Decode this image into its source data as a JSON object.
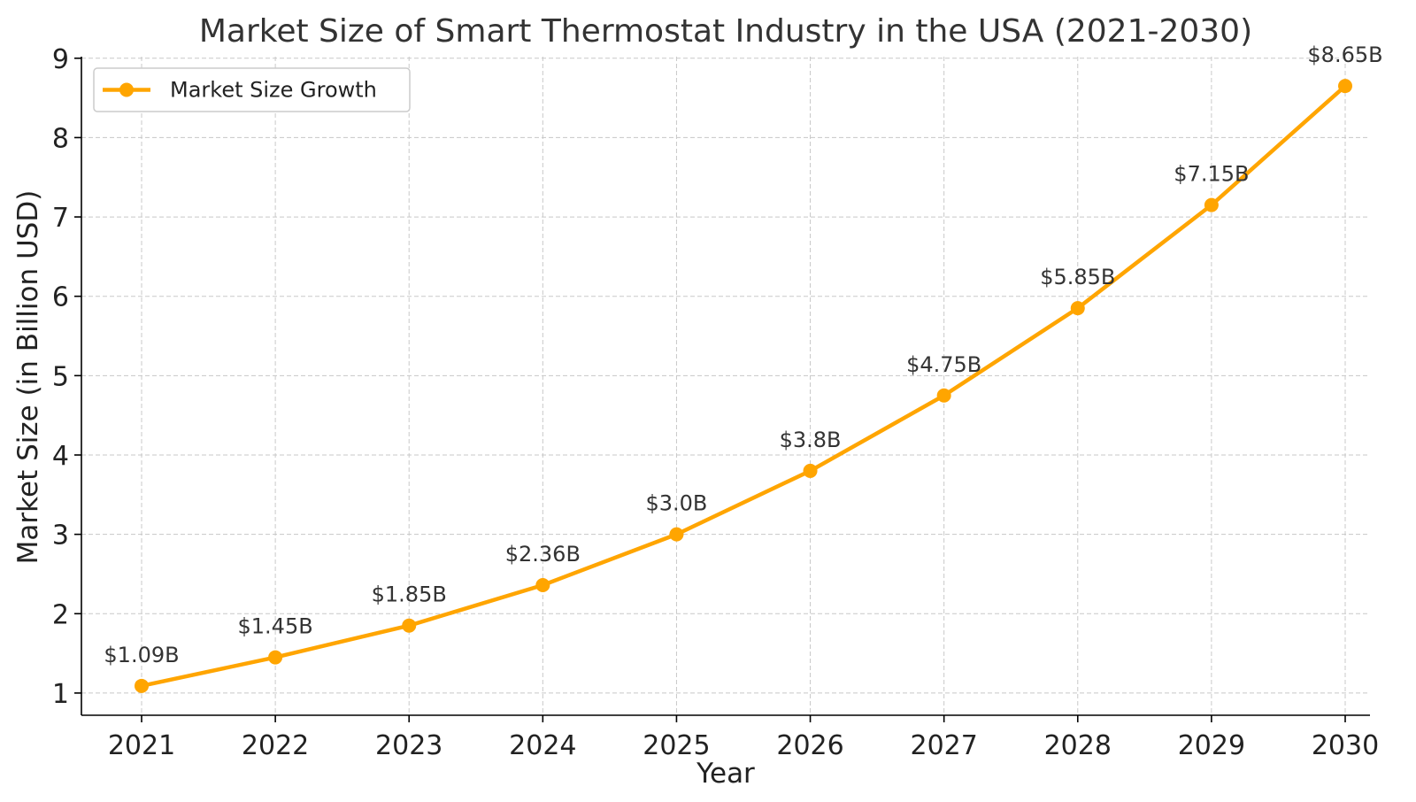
{
  "chart_data": {
    "type": "line",
    "title": "Market Size of Smart Thermostat Industry in the USA (2021-2030)",
    "xlabel": "Year",
    "ylabel": "Market Size (in Billion USD)",
    "categories": [
      "2021",
      "2022",
      "2023",
      "2024",
      "2025",
      "2026",
      "2027",
      "2028",
      "2029",
      "2030"
    ],
    "series": [
      {
        "name": "Market Size Growth",
        "values": [
          1.09,
          1.45,
          1.85,
          2.36,
          3.0,
          3.8,
          4.75,
          5.85,
          7.15,
          8.65
        ],
        "labels": [
          "$1.09B",
          "$1.45B",
          "$1.85B",
          "$2.36B",
          "$3.0B",
          "$3.8B",
          "$4.75B",
          "$5.85B",
          "$7.15B",
          "$8.65B"
        ],
        "color": "#FFA500"
      }
    ],
    "ylim": [
      0.72,
      9.02
    ],
    "yticks": [
      1,
      2,
      3,
      4,
      5,
      6,
      7,
      8,
      9
    ],
    "grid": true,
    "legend_position": "top-left"
  }
}
